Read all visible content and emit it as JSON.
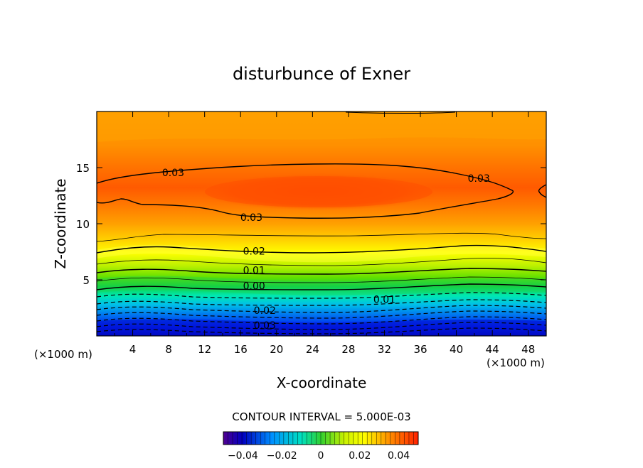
{
  "chart_data": {
    "type": "heatmap",
    "title": "disturbunce of Exner",
    "xlabel": "X-coordinate",
    "ylabel": "Z-coordinate",
    "x_unit": "(×1000 m)",
    "y_unit": "(×1000 m)",
    "xlim": [
      0,
      50
    ],
    "ylim": [
      0,
      20
    ],
    "x_ticks": [
      4,
      8,
      12,
      16,
      20,
      24,
      28,
      32,
      36,
      40,
      44,
      48
    ],
    "y_ticks": [
      5,
      10,
      15
    ],
    "contour_interval_text": "CONTOUR INTERVAL = 5.000E-03",
    "contour_interval": 0.005,
    "contour_labels": [
      {
        "text": "0.03",
        "x": 8.5,
        "z": 14.5
      },
      {
        "text": "0.03",
        "x": 42.5,
        "z": 14.0
      },
      {
        "text": "0.03",
        "x": 17.2,
        "z": 10.5
      },
      {
        "text": "0.02",
        "x": 17.5,
        "z": 7.5
      },
      {
        "text": "0.01",
        "x": 17.5,
        "z": 5.8
      },
      {
        "text": "0.00",
        "x": 17.5,
        "z": 4.4
      },
      {
        "text": "0.01",
        "x": 32.0,
        "z": 3.2
      },
      {
        "text": "0.02",
        "x": 18.7,
        "z": 2.2
      },
      {
        "text": "0.03",
        "x": 18.7,
        "z": 0.9
      }
    ],
    "value_range": [
      -0.05,
      0.05
    ],
    "colorbar": {
      "ticks": [
        -0.04,
        -0.02,
        0,
        0.02,
        0.04
      ],
      "tick_labels": [
        "−0.04",
        "−0.02",
        "0",
        "0.02",
        "0.04"
      ]
    },
    "colors": {
      "max": "#ff4a00",
      "mid": "#ffff00",
      "zero": "#10d010",
      "min": "#0000b0"
    }
  }
}
